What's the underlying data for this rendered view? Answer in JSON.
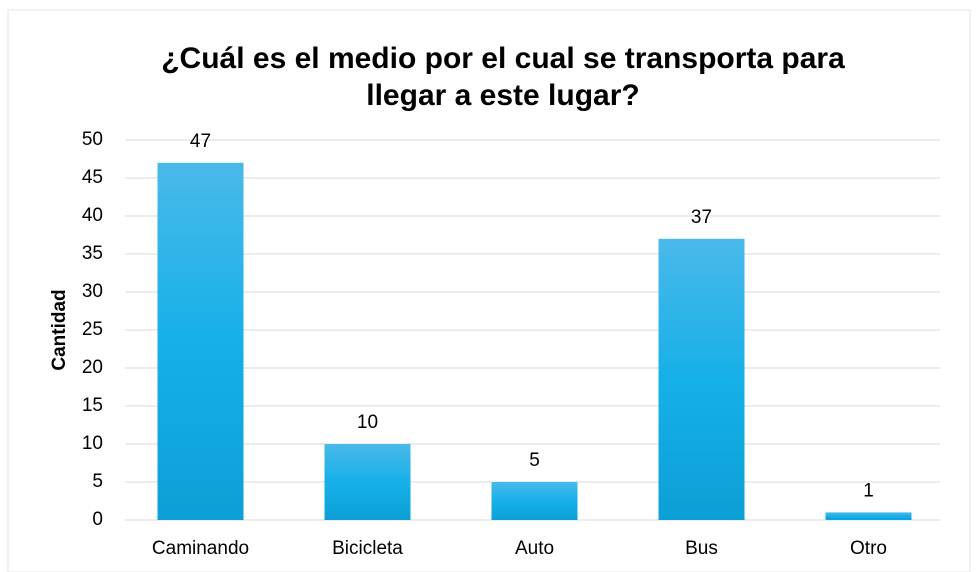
{
  "chart_data": {
    "type": "bar",
    "title": [
      "¿Cuál es el medio por el cual se transporta para",
      "llegar a este lugar?"
    ],
    "ylabel": "Cantidad",
    "categories": [
      "Caminando",
      "Bicicleta",
      "Auto",
      "Bus",
      "Otro"
    ],
    "values": [
      47,
      10,
      5,
      37,
      1
    ],
    "color": "#12aee6",
    "ylim": [
      0,
      50
    ],
    "yticks": [
      0,
      5,
      10,
      15,
      20,
      25,
      30,
      35,
      40,
      45,
      50
    ],
    "grid": true
  }
}
